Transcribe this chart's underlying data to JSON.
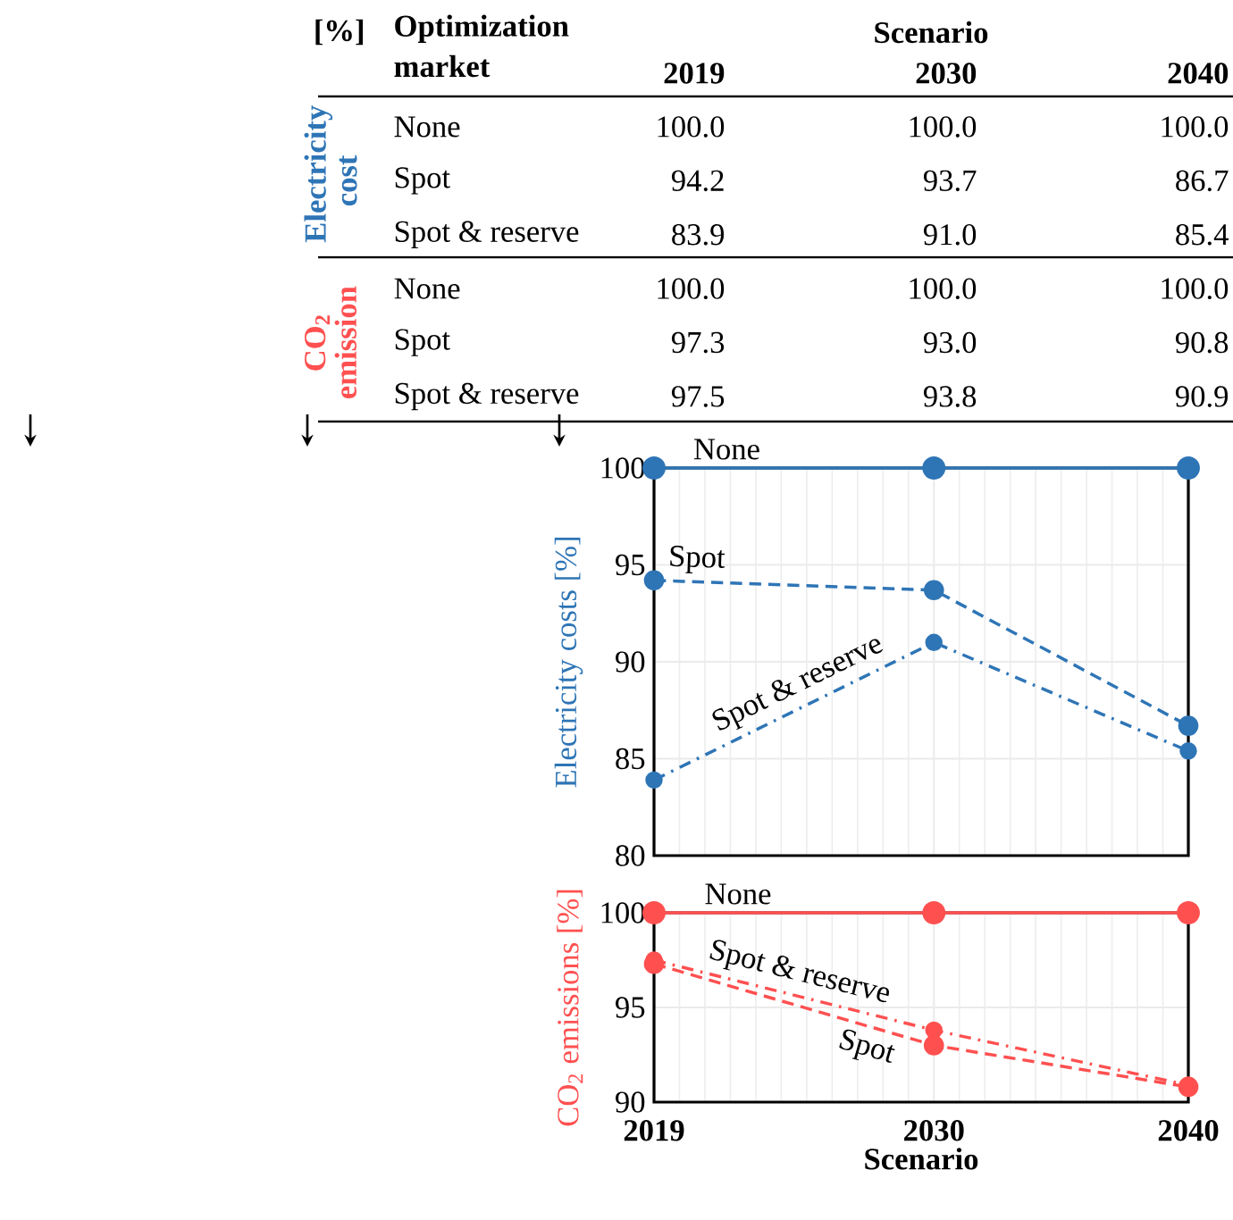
{
  "chart_data": [
    {
      "type": "other",
      "annotations": [
        "[%]",
        "Optimization market",
        "Scenario",
        "Electricity cost",
        "CO$_{2}$ emission"
      ],
      "categories": [
        "2019",
        "2030",
        "2040"
      ],
      "y_categories": [
        "None",
        "Spot",
        "Spot & reserve",
        "None",
        "Spot",
        "Spot & reserve"
      ],
      "cell_labels": [
        [
          "100.0",
          "100.0",
          "100.0"
        ],
        [
          "94.2",
          "93.7",
          "86.7"
        ],
        [
          "83.9",
          "91.0",
          "85.4"
        ],
        [
          "100.0",
          "100.0",
          "100.0"
        ],
        [
          "97.3",
          "93.0",
          "90.8"
        ],
        [
          "97.5",
          "93.8",
          "90.9"
        ]
      ]
    },
    {
      "type": "line",
      "ylabel": "Electricity  costs [%]",
      "x": [
        2019,
        2030,
        2040
      ],
      "xlim": [
        2019,
        2040
      ],
      "xticks": [
        2019,
        2030,
        2040
      ],
      "ylim": [
        80,
        100
      ],
      "yticks": [
        80,
        85,
        90,
        95,
        100
      ],
      "tick_labels": "y",
      "grid": true,
      "marker": "circle",
      "series": [
        {
          "name": "None",
          "color": "#2e75b6",
          "line_style": "solid",
          "values": [
            100,
            100,
            100
          ]
        },
        {
          "name": "Spot",
          "color": "#2e75b6",
          "line_style": "dashed",
          "values": [
            94.2,
            93.7,
            86.7
          ]
        },
        {
          "name": "Spot & reserve",
          "color": "#2e75b6",
          "line_style": "dashdot",
          "values": [
            83.9,
            91.0,
            85.4
          ]
        }
      ]
    },
    {
      "type": "line",
      "xlabel": "Scenario",
      "ylabel": "CO$_{2}$ emissions [%]",
      "x": [
        2019,
        2030,
        2040
      ],
      "xlim": [
        2019,
        2040
      ],
      "xticks": [
        2019,
        2030,
        2040
      ],
      "ylim": [
        90,
        100
      ],
      "yticks": [
        90,
        95,
        100
      ],
      "grid": true,
      "marker": "circle",
      "series": [
        {
          "name": "None",
          "color": "#ff5050",
          "line_style": "solid",
          "values": [
            100,
            100,
            100
          ]
        },
        {
          "name": "Spot",
          "color": "#ff5050",
          "line_style": "dashed",
          "values": [
            97.3,
            93.0,
            90.8
          ]
        },
        {
          "name": "Spot & reserve",
          "color": "#ff5050",
          "line_style": "dashdot",
          "values": [
            97.5,
            93.8,
            90.9
          ]
        }
      ]
    }
  ]
}
